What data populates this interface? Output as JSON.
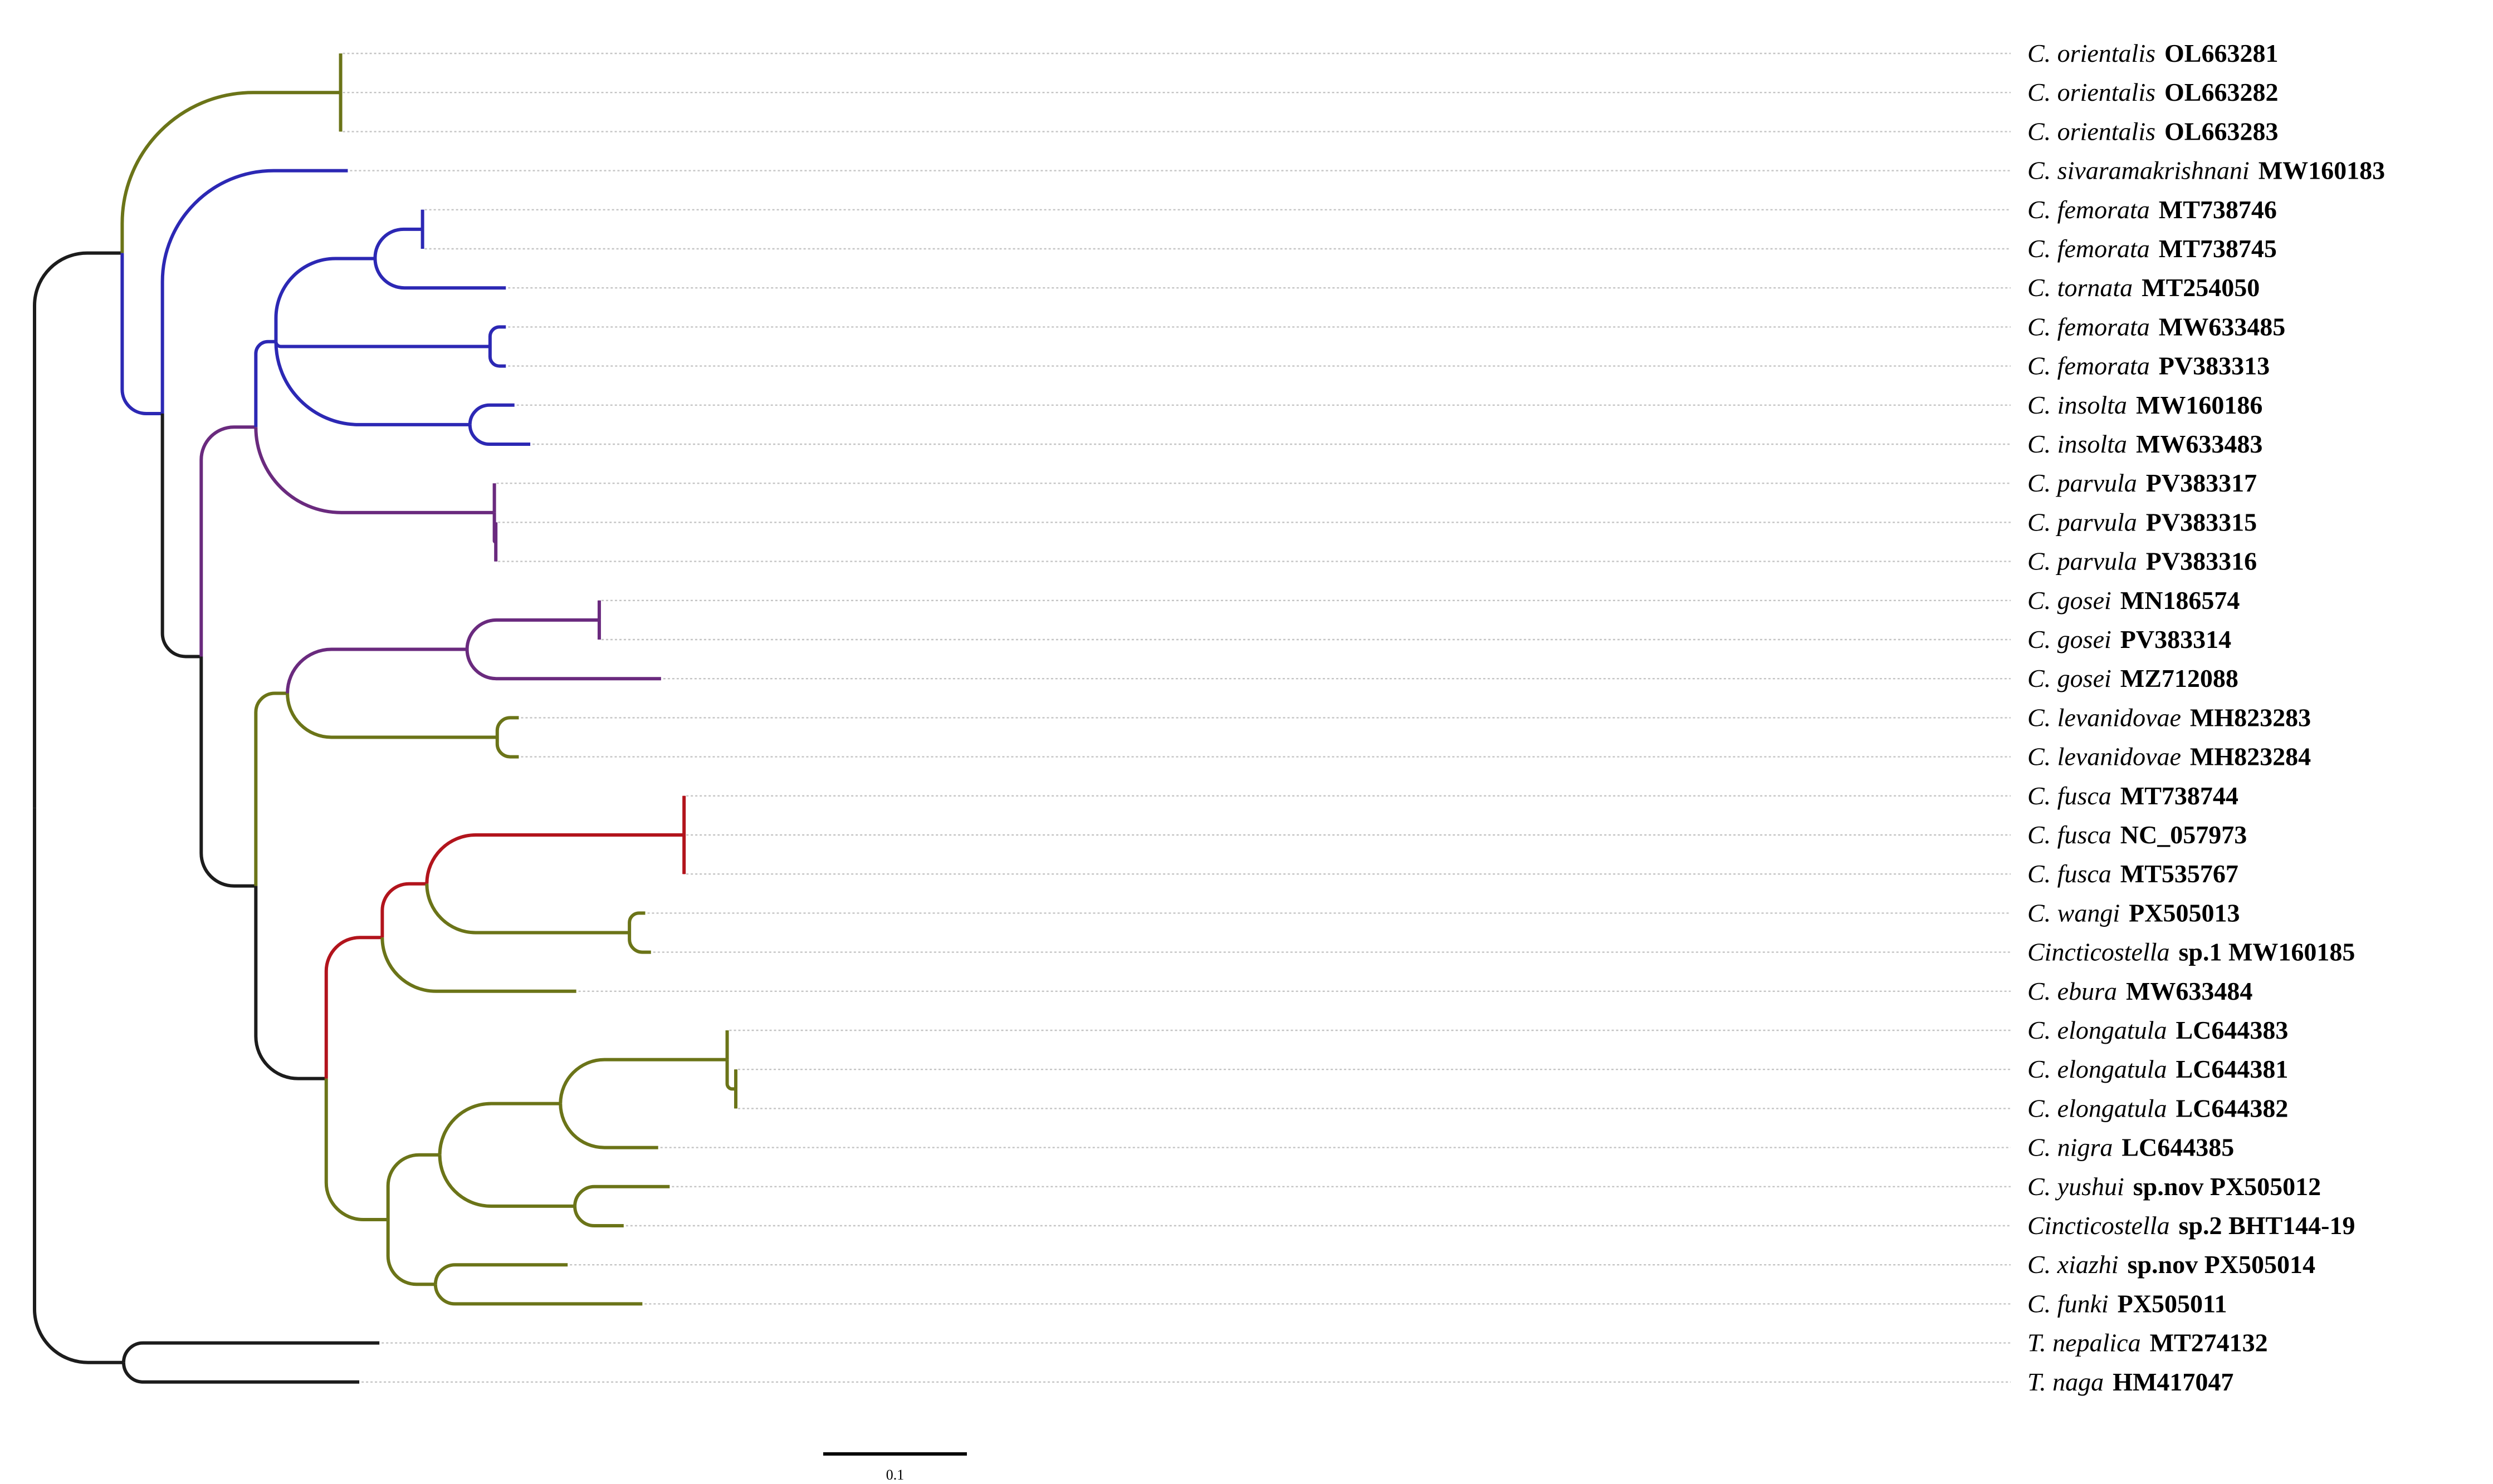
{
  "colors": {
    "black": "#1c1c1c",
    "olive": "#6b7418",
    "blue": "#2c28b4",
    "purple": "#6a2a7e",
    "red": "#b2141c",
    "guide": "#c4c4c4"
  },
  "taxa": [
    {
      "id": "t1",
      "taxon": "C. orientalis",
      "accession": "OL663281"
    },
    {
      "id": "t2",
      "taxon": "C. orientalis",
      "accession": "OL663282"
    },
    {
      "id": "t3",
      "taxon": "C. orientalis",
      "accession": "OL663283"
    },
    {
      "id": "t4",
      "taxon": "C. sivaramakrishnani",
      "accession": "MW160183"
    },
    {
      "id": "t5",
      "taxon": "C. femorata",
      "accession": "MT738746"
    },
    {
      "id": "t6",
      "taxon": "C. femorata",
      "accession": "MT738745"
    },
    {
      "id": "t7",
      "taxon": "C. tornata",
      "accession": "MT254050"
    },
    {
      "id": "t8",
      "taxon": "C. femorata",
      "accession": "MW633485"
    },
    {
      "id": "t9",
      "taxon": "C. femorata",
      "accession": "PV383313"
    },
    {
      "id": "t10",
      "taxon": "C. insolta",
      "accession": "MW160186"
    },
    {
      "id": "t11",
      "taxon": "C. insolta",
      "accession": "MW633483"
    },
    {
      "id": "t12",
      "taxon": "C. parvula",
      "accession": "PV383317"
    },
    {
      "id": "t13",
      "taxon": "C. parvula",
      "accession": "PV383315"
    },
    {
      "id": "t14",
      "taxon": "C. parvula",
      "accession": "PV383316"
    },
    {
      "id": "t15",
      "taxon": "C. gosei",
      "accession": "MN186574"
    },
    {
      "id": "t16",
      "taxon": "C. gosei",
      "accession": "PV383314"
    },
    {
      "id": "t17",
      "taxon": "C. gosei",
      "accession": "MZ712088"
    },
    {
      "id": "t18",
      "taxon": "C. levanidovae",
      "accession": "MH823283"
    },
    {
      "id": "t19",
      "taxon": "C. levanidovae",
      "accession": "MH823284"
    },
    {
      "id": "t20",
      "taxon": "C. fusca",
      "accession": "MT738744"
    },
    {
      "id": "t21",
      "taxon": "C. fusca",
      "accession": "NC_057973"
    },
    {
      "id": "t22",
      "taxon": "C. fusca",
      "accession": "MT535767"
    },
    {
      "id": "t23",
      "taxon": "C. wangi",
      "accession": "PX505013"
    },
    {
      "id": "t24",
      "taxon": "Cincticostella",
      "accession": "sp.1 MW160185"
    },
    {
      "id": "t25",
      "taxon": "C. ebura",
      "accession": "MW633484"
    },
    {
      "id": "t26",
      "taxon": "C. elongatula",
      "accession": "LC644383"
    },
    {
      "id": "t27",
      "taxon": "C. elongatula",
      "accession": "LC644381"
    },
    {
      "id": "t28",
      "taxon": "C. elongatula",
      "accession": "LC644382"
    },
    {
      "id": "t29",
      "taxon": "C. nigra",
      "accession": "LC644385"
    },
    {
      "id": "t30",
      "taxon": "C. yushui",
      "accession": "sp.nov PX505012"
    },
    {
      "id": "t31",
      "taxon": "Cincticostella",
      "accession": "sp.2 BHT144-19"
    },
    {
      "id": "t32",
      "taxon": "C. xiazhi",
      "accession": "sp.nov PX505014"
    },
    {
      "id": "t33",
      "taxon": "C. funki",
      "accession": "PX505011"
    },
    {
      "id": "t34",
      "taxon": "T. nepalica",
      "accession": "MT274132"
    },
    {
      "id": "t35",
      "taxon": "T. naga",
      "accession": "HM417047"
    }
  ],
  "tree": {
    "name": "root",
    "len": 0,
    "color": "black",
    "children": [
      {
        "name": "ingroup",
        "len": 0.061,
        "color": "black",
        "children": [
          {
            "name": "orientalis-clade",
            "len": 0.152,
            "color": "olive",
            "children": [
              {
                "leaf": "t1",
                "len": 0.0
              },
              {
                "leaf": "t2",
                "len": 0.0
              },
              {
                "leaf": "t3",
                "len": 0.0
              }
            ]
          },
          {
            "name": "big-clade",
            "len": 0.028,
            "color": "blue",
            "children": [
              {
                "leaf": "t4",
                "len": 0.129,
                "color": "blue"
              },
              {
                "name": "main",
                "len": 0.027,
                "color": "black",
                "children": [
                  {
                    "name": "femorata-parvula",
                    "len": 0.038,
                    "color": "purple",
                    "children": [
                      {
                        "name": "femorata-insolta",
                        "len": 0.014,
                        "color": "blue",
                        "children": [
                          {
                            "name": "femorata-tornata",
                            "len": 0.069,
                            "color": "blue",
                            "children": [
                              {
                                "name": "femorata-pair",
                                "len": 0.033,
                                "color": "blue",
                                "children": [
                                  {
                                    "leaf": "t5",
                                    "len": 0.0
                                  },
                                  {
                                    "leaf": "t6",
                                    "len": 0.0
                                  }
                                ]
                              },
                              {
                                "leaf": "t7",
                                "len": 0.091,
                                "color": "blue"
                              }
                            ]
                          },
                          {
                            "name": "femorata-pv",
                            "len": 0.149,
                            "color": "blue",
                            "children": [
                              {
                                "leaf": "t8",
                                "len": 0.011,
                                "color": "blue"
                              },
                              {
                                "leaf": "t9",
                                "len": 0.011,
                                "color": "blue"
                              }
                            ]
                          },
                          {
                            "name": "insolta",
                            "len": 0.135,
                            "color": "blue",
                            "children": [
                              {
                                "leaf": "t10",
                                "len": 0.031,
                                "color": "blue"
                              },
                              {
                                "leaf": "t11",
                                "len": 0.042,
                                "color": "blue"
                              }
                            ]
                          }
                        ]
                      },
                      {
                        "name": "parvula",
                        "len": 0.166,
                        "color": "purple",
                        "children": [
                          {
                            "leaf": "t12",
                            "len": 0.0
                          },
                          {
                            "name": "parvula-pair",
                            "len": 0.001,
                            "color": "purple",
                            "children": [
                              {
                                "leaf": "t13",
                                "len": 0.0
                              },
                              {
                                "leaf": "t14",
                                "len": 0.0
                              }
                            ]
                          }
                        ]
                      }
                    ]
                  },
                  {
                    "name": "rest",
                    "len": 0.038,
                    "color": "black",
                    "children": [
                      {
                        "name": "gosei-levanidovae",
                        "len": 0.022,
                        "color": "olive",
                        "children": [
                          {
                            "name": "gosei",
                            "len": 0.125,
                            "color": "purple",
                            "children": [
                              {
                                "name": "gosei-pair",
                                "len": 0.092,
                                "color": "purple",
                                "children": [
                                  {
                                    "leaf": "t15",
                                    "len": 0.0
                                  },
                                  {
                                    "leaf": "t16",
                                    "len": 0.0
                                  }
                                ]
                              },
                              {
                                "leaf": "t17",
                                "len": 0.135,
                                "color": "purple"
                              }
                            ]
                          },
                          {
                            "name": "levanidovae",
                            "len": 0.146,
                            "color": "olive",
                            "children": [
                              {
                                "leaf": "t18",
                                "len": 0.015,
                                "color": "olive"
                              },
                              {
                                "leaf": "t19",
                                "len": 0.015,
                                "color": "olive"
                              }
                            ]
                          }
                        ]
                      },
                      {
                        "name": "fusca-ebura-elongatula",
                        "len": 0.049,
                        "color": "black",
                        "children": [
                          {
                            "name": "fusca-wangi-ebura",
                            "len": 0.039,
                            "color": "red",
                            "children": [
                              {
                                "name": "fusca-wangi",
                                "len": 0.031,
                                "color": "red",
                                "children": [
                                  {
                                    "name": "fusca",
                                    "len": 0.179,
                                    "color": "red",
                                    "children": [
                                      {
                                        "leaf": "t20",
                                        "len": 0.0
                                      },
                                      {
                                        "leaf": "t21",
                                        "len": 0.0
                                      },
                                      {
                                        "leaf": "t22",
                                        "len": 0.0
                                      }
                                    ]
                                  },
                                  {
                                    "name": "wangi",
                                    "len": 0.141,
                                    "color": "olive",
                                    "children": [
                                      {
                                        "leaf": "t23",
                                        "len": 0.011,
                                        "color": "olive"
                                      },
                                      {
                                        "leaf": "t24",
                                        "len": 0.015,
                                        "color": "olive"
                                      }
                                    ]
                                  }
                                ]
                              },
                              {
                                "leaf": "t25",
                                "len": 0.135,
                                "color": "olive"
                              }
                            ]
                          },
                          {
                            "name": "elongatula-funki",
                            "len": 0.043,
                            "color": "olive",
                            "children": [
                              {
                                "name": "elongatula-yushui",
                                "len": 0.036,
                                "color": "olive",
                                "children": [
                                  {
                                    "name": "elongatula-nigra",
                                    "len": 0.084,
                                    "color": "olive",
                                    "children": [
                                      {
                                        "name": "elongatula",
                                        "len": 0.116,
                                        "color": "olive",
                                        "children": [
                                          {
                                            "leaf": "t26",
                                            "len": 0.0
                                          },
                                          {
                                            "name": "elongatula-pair",
                                            "len": 0.006,
                                            "color": "olive",
                                            "children": [
                                              {
                                                "leaf": "t27",
                                                "len": 0.0
                                              },
                                              {
                                                "leaf": "t28",
                                                "len": 0.0
                                              }
                                            ]
                                          }
                                        ]
                                      },
                                      {
                                        "leaf": "t29",
                                        "len": 0.068,
                                        "color": "olive"
                                      }
                                    ]
                                  },
                                  {
                                    "name": "yushui-sp2",
                                    "len": 0.094,
                                    "color": "olive",
                                    "children": [
                                      {
                                        "leaf": "t30",
                                        "len": 0.066,
                                        "color": "olive"
                                      },
                                      {
                                        "leaf": "t31",
                                        "len": 0.034,
                                        "color": "olive"
                                      }
                                    ]
                                  }
                                ]
                              },
                              {
                                "name": "xiazhi-funki",
                                "len": 0.033,
                                "color": "olive",
                                "children": [
                                  {
                                    "leaf": "t32",
                                    "len": 0.092,
                                    "color": "olive"
                                  },
                                  {
                                    "leaf": "t33",
                                    "len": 0.144,
                                    "color": "olive"
                                  }
                                ]
                              }
                            ]
                          }
                        ]
                      }
                    ]
                  }
                ]
              }
            ]
          }
        ]
      },
      {
        "name": "outgroup",
        "len": 0.062,
        "color": "black",
        "children": [
          {
            "leaf": "t34",
            "len": 0.178,
            "color": "black"
          },
          {
            "leaf": "t35",
            "len": 0.164,
            "color": "black"
          }
        ]
      }
    ]
  },
  "scale_bar": {
    "value": 0.1,
    "label": "0.1"
  }
}
